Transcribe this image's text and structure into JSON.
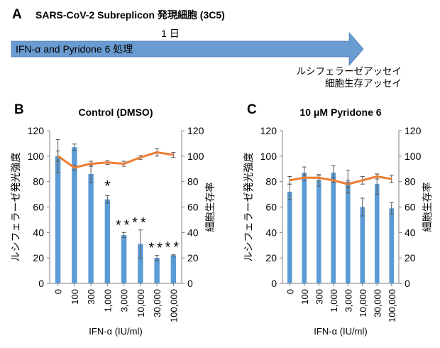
{
  "panel_a": {
    "letter": "A",
    "title": "SARS-CoV-2 Subreplicon 発現細胞 (3C5)",
    "duration": "1 日",
    "arrow_label": "IFN-α and Pyridone 6 処理",
    "assay_1": "ルシフェラーゼアッセイ",
    "assay_2": "細胞生存アッセイ",
    "arrow_color": "#6a9bd1"
  },
  "colors": {
    "bar": "#5b9bd5",
    "line": "#ed7d31",
    "error": "#595959"
  },
  "chart_data": [
    {
      "type": "bar+line",
      "letter": "B",
      "title": "Control (DMSO)",
      "xlabel": "IFN-α (IU/ml)",
      "ylabel": "ルシフェラーゼ発光強度",
      "y2label": "細胞生存率",
      "ylim": [
        0,
        120
      ],
      "y2lim": [
        0,
        120
      ],
      "yticks": [
        "0",
        "20",
        "40",
        "60",
        "80",
        "100",
        "120"
      ],
      "categories": [
        "0",
        "100",
        "300",
        "1,000",
        "3,000",
        "10,000",
        "30,000",
        "100,000"
      ],
      "bars": {
        "values": [
          100,
          107,
          86,
          66,
          38,
          31,
          20,
          22
        ],
        "errors": [
          13,
          2.5,
          7,
          3,
          2,
          11,
          2,
          0.5
        ]
      },
      "line": {
        "values": [
          100,
          91,
          94,
          95,
          94,
          99,
          103,
          101
        ],
        "errors": [
          4,
          2,
          2,
          1.5,
          2,
          1.5,
          3,
          2
        ]
      },
      "significance": [
        "",
        "",
        "",
        "*",
        "**",
        "**",
        "**",
        "**"
      ]
    },
    {
      "type": "bar+line",
      "letter": "C",
      "title": "10 μM Pyridone 6",
      "xlabel": "IFN-α (IU/ml)",
      "ylabel": "ルシフェラーゼ発光強度",
      "y2label": "細胞生存率",
      "ylim": [
        0,
        120
      ],
      "y2lim": [
        0,
        120
      ],
      "yticks": [
        "0",
        "20",
        "40",
        "60",
        "80",
        "100",
        "120"
      ],
      "categories": [
        "0",
        "100",
        "300",
        "1,000",
        "3,000",
        "10,000",
        "30,000",
        "100,000"
      ],
      "bars": {
        "values": [
          72,
          87,
          81,
          87,
          80,
          60,
          78,
          59
        ],
        "errors": [
          6,
          4.5,
          4.5,
          5.5,
          9,
          7,
          8,
          4.5
        ]
      },
      "line": {
        "values": [
          81,
          83,
          83,
          81,
          78,
          81,
          84,
          82
        ],
        "errors": [
          3,
          2,
          2,
          2,
          3,
          3,
          2,
          3
        ]
      },
      "significance": [
        "",
        "",
        "",
        "",
        "",
        "",
        "",
        ""
      ]
    }
  ]
}
